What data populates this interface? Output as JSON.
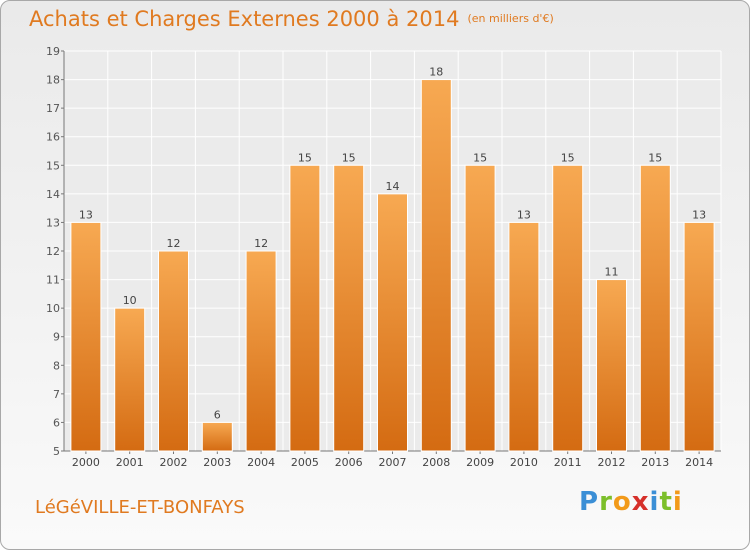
{
  "header": {
    "title": "Achats et Charges Externes 2000 à 2014",
    "unit_note": "(en milliers d'€)"
  },
  "footer": {
    "town": "LéGéVILLE-ET-BONFAYS",
    "brand_letters": [
      "P",
      "r",
      "o",
      "x",
      "i",
      "t",
      "i"
    ]
  },
  "colors": {
    "accent": "#e07a20",
    "bar_top": "#f7a952",
    "bar_bottom": "#d46b12"
  },
  "chart_data": {
    "type": "bar",
    "title": "Achats et Charges Externes 2000 à 2014",
    "subtitle": "(en milliers d'€)",
    "categories": [
      "2000",
      "2001",
      "2002",
      "2003",
      "2004",
      "2005",
      "2006",
      "2007",
      "2008",
      "2009",
      "2010",
      "2011",
      "2012",
      "2013",
      "2014"
    ],
    "values": [
      13,
      10,
      12,
      6,
      12,
      15,
      15,
      14,
      18,
      15,
      13,
      15,
      11,
      15,
      13
    ],
    "ylim": [
      5,
      19
    ],
    "yticks": [
      5,
      6,
      7,
      8,
      9,
      10,
      11,
      12,
      13,
      14,
      15,
      16,
      17,
      18,
      19
    ],
    "grid": true,
    "data_labels": true
  }
}
